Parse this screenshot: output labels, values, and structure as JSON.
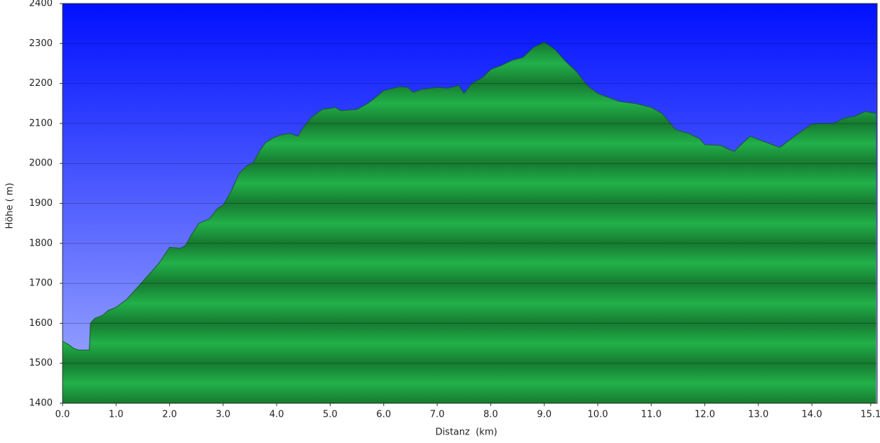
{
  "chart_data": {
    "type": "area",
    "x_label": "Distanz  (km)",
    "y_label": "Höhe ( m)",
    "x": [
      0.0,
      0.1,
      0.2,
      0.3,
      0.45,
      0.5,
      0.52,
      0.6,
      0.75,
      0.85,
      1.0,
      1.2,
      1.4,
      1.6,
      1.8,
      2.0,
      2.2,
      2.3,
      2.4,
      2.55,
      2.75,
      2.9,
      3.0,
      3.15,
      3.3,
      3.45,
      3.55,
      3.7,
      3.8,
      3.95,
      4.1,
      4.25,
      4.4,
      4.5,
      4.65,
      4.85,
      5.1,
      5.2,
      5.5,
      5.7,
      5.85,
      6.0,
      6.3,
      6.45,
      6.55,
      6.7,
      7.0,
      7.2,
      7.4,
      7.5,
      7.65,
      7.85,
      8.0,
      8.2,
      8.4,
      8.6,
      8.8,
      9.0,
      9.2,
      9.4,
      9.6,
      9.8,
      10.0,
      10.2,
      10.4,
      10.7,
      11.0,
      11.2,
      11.45,
      11.7,
      11.9,
      12.0,
      12.3,
      12.45,
      12.55,
      12.7,
      12.85,
      13.0,
      13.2,
      13.4,
      13.55,
      13.8,
      14.0,
      14.2,
      14.4,
      14.6,
      14.8,
      15.0,
      15.2
    ],
    "values": [
      1555,
      1548,
      1538,
      1533,
      1533,
      1533,
      1600,
      1612,
      1620,
      1632,
      1640,
      1660,
      1690,
      1720,
      1750,
      1790,
      1788,
      1795,
      1820,
      1850,
      1862,
      1888,
      1895,
      1930,
      1975,
      1995,
      2000,
      2035,
      2053,
      2065,
      2072,
      2075,
      2068,
      2090,
      2115,
      2135,
      2140,
      2132,
      2135,
      2150,
      2165,
      2182,
      2192,
      2190,
      2178,
      2185,
      2190,
      2188,
      2195,
      2175,
      2200,
      2215,
      2235,
      2245,
      2258,
      2265,
      2290,
      2303,
      2285,
      2255,
      2230,
      2195,
      2175,
      2165,
      2155,
      2150,
      2140,
      2125,
      2085,
      2075,
      2062,
      2047,
      2045,
      2035,
      2030,
      2050,
      2068,
      2060,
      2050,
      2040,
      2055,
      2080,
      2098,
      2100,
      2100,
      2113,
      2118,
      2130,
      2125
    ],
    "color": "#22aa44",
    "xlim": [
      0,
      15.22
    ],
    "ylim": [
      1400,
      2400
    ],
    "xticks": [
      {
        "value": 0,
        "label": "0.0"
      },
      {
        "value": 1,
        "label": "1.0"
      },
      {
        "value": 2,
        "label": "2.0"
      },
      {
        "value": 3,
        "label": "3.0"
      },
      {
        "value": 4,
        "label": "4.0"
      },
      {
        "value": 5,
        "label": "5.0"
      },
      {
        "value": 6,
        "label": "6.0"
      },
      {
        "value": 7,
        "label": "7.0"
      },
      {
        "value": 8,
        "label": "8.0"
      },
      {
        "value": 9,
        "label": "9.0"
      },
      {
        "value": 10,
        "label": "10.0"
      },
      {
        "value": 11,
        "label": "11.0"
      },
      {
        "value": 12,
        "label": "12.0"
      },
      {
        "value": 13,
        "label": "13.0"
      },
      {
        "value": 14,
        "label": "14.0"
      },
      15.1
    ],
    "yticks": [
      1400,
      1500,
      1600,
      1700,
      1800,
      1900,
      2000,
      2100,
      2200,
      2300,
      2400
    ],
    "grid": true
  }
}
